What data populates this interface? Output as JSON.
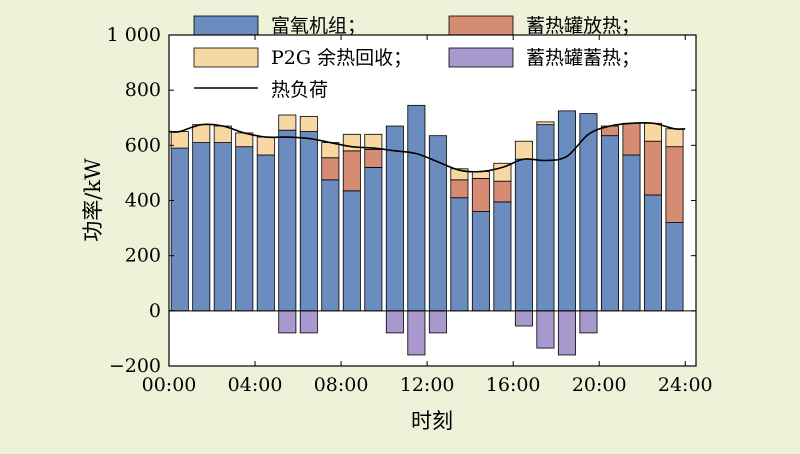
{
  "chart_data": {
    "type": "bar",
    "xlabel": "时刻",
    "ylabel": "功率/kW",
    "ylim": [
      -200,
      1000
    ],
    "yticks": [
      -200,
      0,
      200,
      400,
      600,
      800,
      1000
    ],
    "ytick_labels": [
      "−200",
      "0",
      "200",
      "400",
      "600",
      "800",
      "1 000"
    ],
    "xticks": [
      0,
      4,
      8,
      12,
      16,
      20,
      24
    ],
    "xtick_labels": [
      "00:00",
      "04:00",
      "08:00",
      "12:00",
      "16:00",
      "20:00",
      "24:00"
    ],
    "grid": false,
    "legend_position": "top",
    "hours": [
      1,
      2,
      3,
      4,
      5,
      6,
      7,
      8,
      9,
      10,
      11,
      12,
      13,
      14,
      15,
      16,
      17,
      18,
      19,
      20,
      21,
      22,
      23,
      24
    ],
    "series": [
      {
        "name": "富氧机组；",
        "kind": "bar",
        "color": "#6b8cbe",
        "values": [
          590,
          610,
          610,
          595,
          565,
          655,
          650,
          475,
          435,
          520,
          670,
          745,
          635,
          410,
          360,
          395,
          550,
          675,
          725,
          715,
          635,
          565,
          420,
          320
        ]
      },
      {
        "name": "P2G 余热回收；",
        "kind": "bar",
        "color": "#f7d8a2",
        "values": [
          60,
          65,
          60,
          50,
          65,
          55,
          55,
          55,
          60,
          55,
          0,
          0,
          0,
          40,
          25,
          65,
          65,
          10,
          0,
          0,
          0,
          0,
          65,
          65
        ]
      },
      {
        "name": "蓄热罐放热；",
        "kind": "bar",
        "color": "#d58c72",
        "values": [
          0,
          0,
          0,
          0,
          0,
          0,
          0,
          80,
          145,
          65,
          0,
          0,
          0,
          65,
          120,
          75,
          0,
          0,
          0,
          0,
          35,
          115,
          195,
          275
        ]
      },
      {
        "name": "蓄热罐蓄热；",
        "kind": "bar",
        "color": "#a898cc",
        "values": [
          0,
          0,
          0,
          0,
          0,
          -80,
          -80,
          0,
          0,
          0,
          -80,
          -160,
          -80,
          0,
          0,
          0,
          -55,
          -135,
          -160,
          -80,
          0,
          0,
          0,
          0
        ]
      },
      {
        "name": "热负荷",
        "kind": "line",
        "color": "#000000",
        "values": [
          650,
          675,
          670,
          645,
          630,
          630,
          625,
          610,
          595,
          590,
          580,
          570,
          540,
          510,
          505,
          520,
          550,
          545,
          560,
          640,
          670,
          680,
          680,
          660
        ]
      }
    ]
  }
}
